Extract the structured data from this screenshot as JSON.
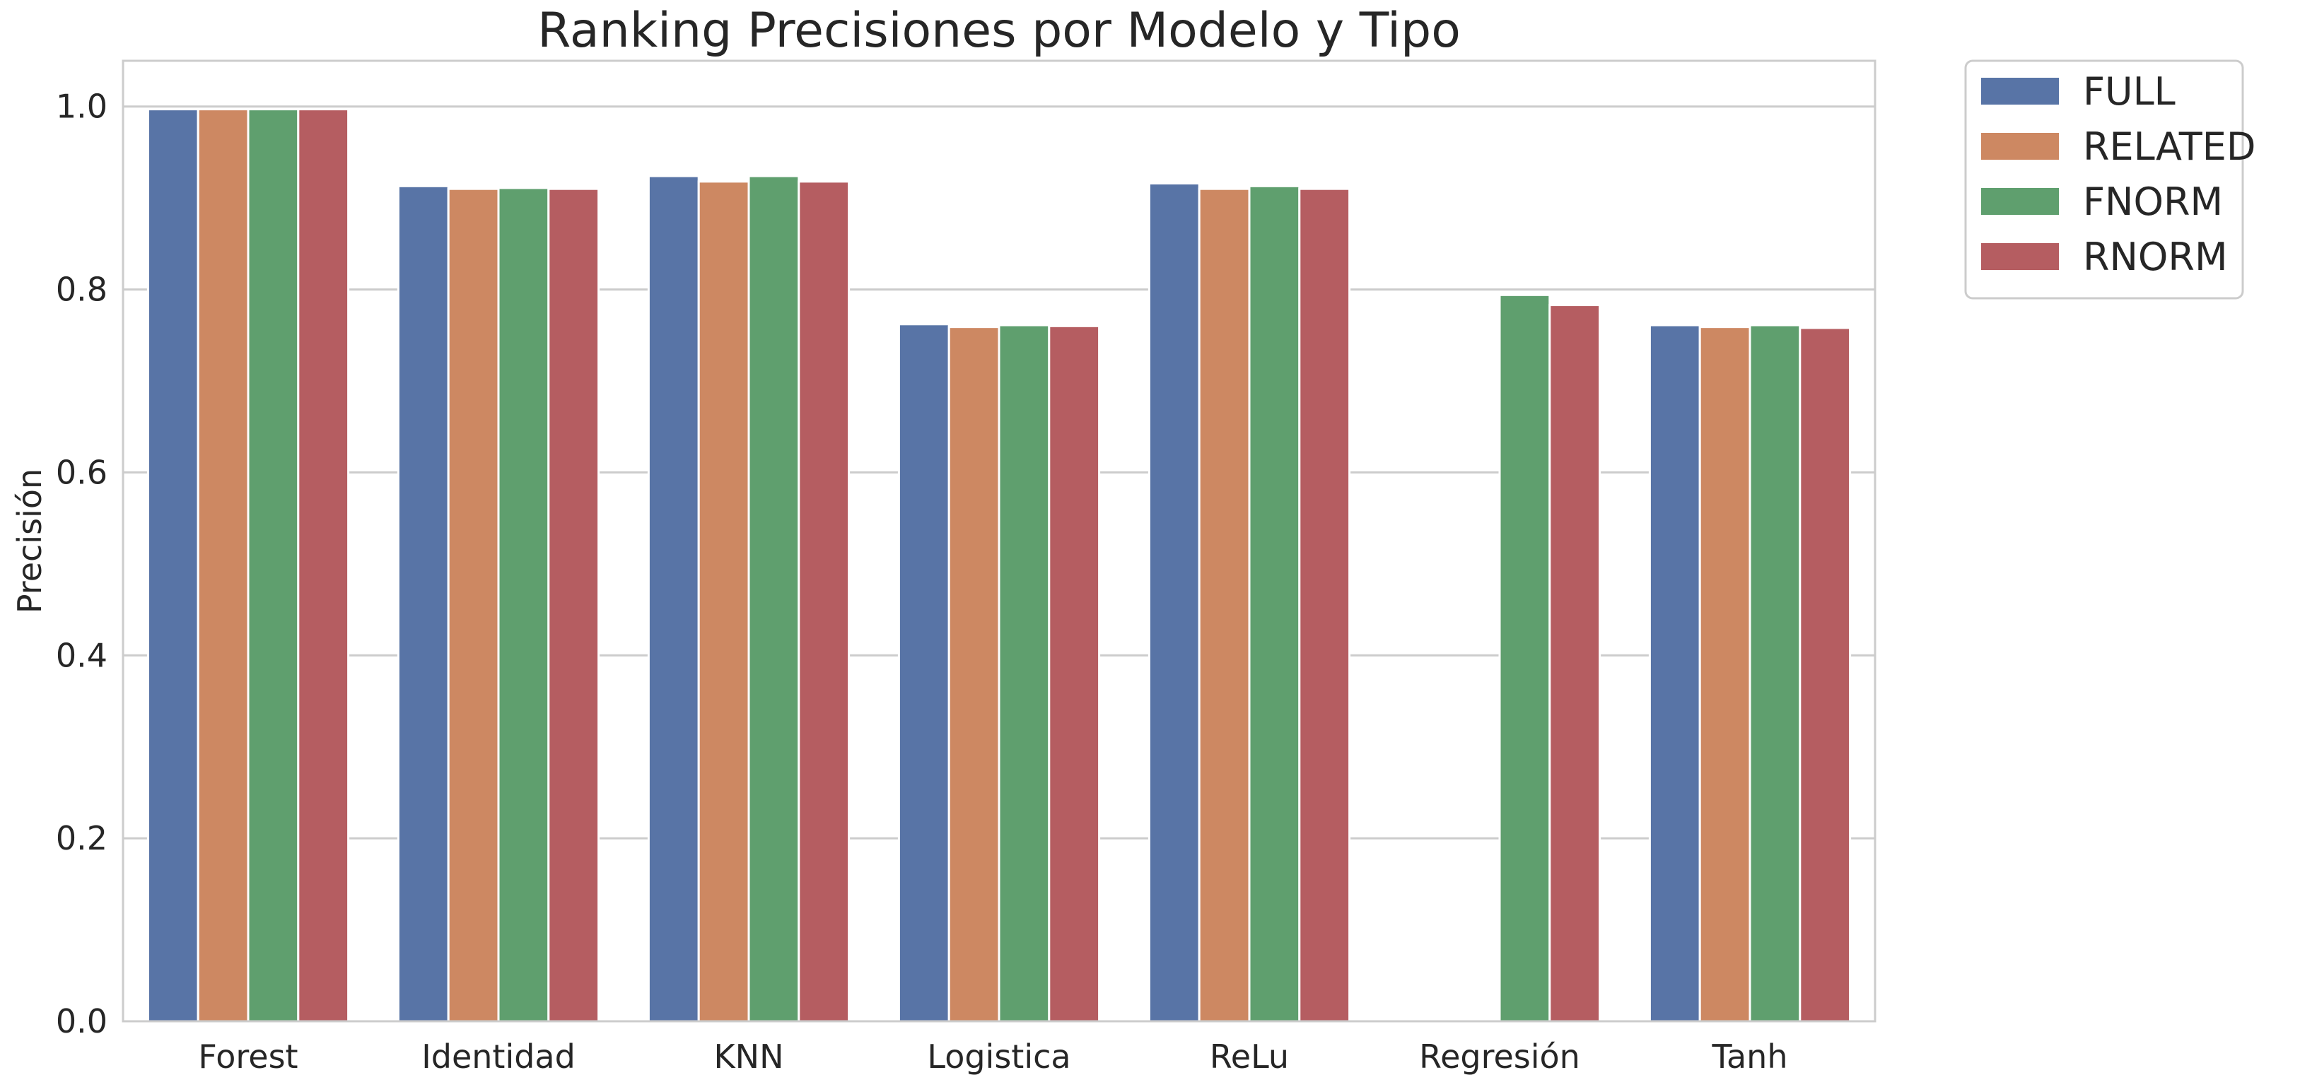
{
  "chart_data": {
    "type": "bar",
    "title": "Ranking Precisiones por Modelo y Tipo",
    "xlabel": "",
    "ylabel": "Precisión",
    "ylim": [
      0,
      1.05
    ],
    "yticks": [
      "0.0",
      "0.2",
      "0.4",
      "0.6",
      "0.8",
      "1.0"
    ],
    "grid": true,
    "legend_position": "outside-top-right",
    "categories": [
      "Forest",
      "Identidad",
      "KNN",
      "Logistica",
      "ReLu",
      "Regresión",
      "Tanh"
    ],
    "series": [
      {
        "name": "FULL",
        "color": "#5874a6",
        "values": [
          0.997,
          0.913,
          0.924,
          0.762,
          0.916,
          null,
          0.761
        ]
      },
      {
        "name": "RELATED",
        "color": "#cd8862",
        "values": [
          0.997,
          0.91,
          0.918,
          0.759,
          0.91,
          null,
          0.759
        ]
      },
      {
        "name": "FNORM",
        "color": "#5f9f6e",
        "values": [
          0.997,
          0.911,
          0.924,
          0.761,
          0.913,
          0.794,
          0.761
        ]
      },
      {
        "name": "RNORM",
        "color": "#b55d61",
        "values": [
          0.997,
          0.91,
          0.918,
          0.76,
          0.91,
          0.783,
          0.758
        ]
      }
    ]
  }
}
